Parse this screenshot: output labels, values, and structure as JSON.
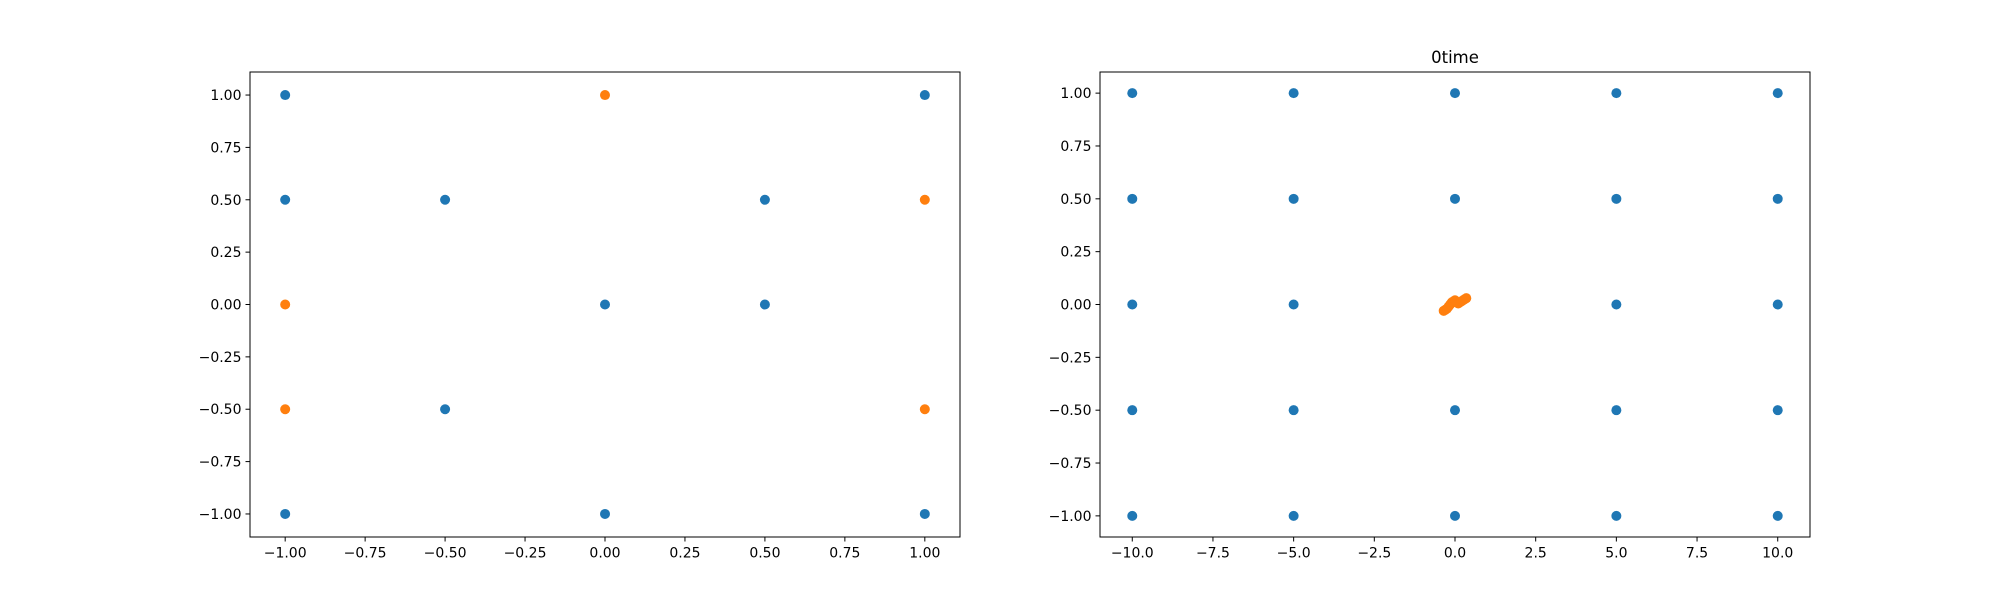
{
  "colors": {
    "background": "#ffffff",
    "axes_edge": "#000000",
    "series_blue": "#1f77b4",
    "series_orange": "#ff7f0e"
  },
  "chart_data": [
    {
      "type": "scatter",
      "title": "",
      "xlabel": "",
      "ylabel": "",
      "xlim": [
        -1.11,
        1.11
      ],
      "ylim": [
        -1.11,
        1.11
      ],
      "xticks": [
        -1.0,
        -0.75,
        -0.5,
        -0.25,
        0.0,
        0.25,
        0.5,
        0.75,
        1.0
      ],
      "xtick_labels": [
        "−1.00",
        "−0.75",
        "−0.50",
        "−0.25",
        "0.00",
        "0.25",
        "0.50",
        "0.75",
        "1.00"
      ],
      "yticks": [
        -1.0,
        -0.75,
        -0.5,
        -0.25,
        0.0,
        0.25,
        0.5,
        0.75,
        1.0
      ],
      "ytick_labels": [
        "−1.00",
        "−0.75",
        "−0.50",
        "−0.25",
        "0.00",
        "0.25",
        "0.50",
        "0.75",
        "1.00"
      ],
      "grid": false,
      "series": [
        {
          "color": "#1f77b4",
          "points": [
            [
              -1.0,
              1.0
            ],
            [
              1.0,
              1.0
            ],
            [
              -1.0,
              0.5
            ],
            [
              -0.5,
              0.5
            ],
            [
              0.5,
              0.5
            ],
            [
              0.0,
              0.0
            ],
            [
              0.5,
              0.0
            ],
            [
              -0.5,
              -0.5
            ],
            [
              -1.0,
              -1.0
            ],
            [
              0.0,
              -1.0
            ],
            [
              1.0,
              -1.0
            ]
          ]
        },
        {
          "color": "#ff7f0e",
          "points": [
            [
              0.0,
              1.0
            ],
            [
              1.0,
              0.5
            ],
            [
              -1.0,
              0.0
            ],
            [
              -1.0,
              -0.5
            ],
            [
              1.0,
              -0.5
            ]
          ]
        }
      ]
    },
    {
      "type": "scatter",
      "title": "0time",
      "xlabel": "",
      "ylabel": "",
      "xlim": [
        -11.0,
        11.0
      ],
      "ylim": [
        -1.1,
        1.1
      ],
      "xticks": [
        -10.0,
        -7.5,
        -5.0,
        -2.5,
        0.0,
        2.5,
        5.0,
        7.5,
        10.0
      ],
      "xtick_labels": [
        "−10.0",
        "−7.5",
        "−5.0",
        "−2.5",
        "0.0",
        "2.5",
        "5.0",
        "7.5",
        "10.0"
      ],
      "yticks": [
        -1.0,
        -0.75,
        -0.5,
        -0.25,
        0.0,
        0.25,
        0.5,
        0.75,
        1.0
      ],
      "ytick_labels": [
        "−1.00",
        "−0.75",
        "−0.50",
        "−0.25",
        "0.00",
        "0.25",
        "0.50",
        "0.75",
        "1.00"
      ],
      "grid": false,
      "series": [
        {
          "color": "#1f77b4",
          "points": [
            [
              -10,
              1.0
            ],
            [
              -5,
              1.0
            ],
            [
              0,
              1.0
            ],
            [
              5,
              1.0
            ],
            [
              10,
              1.0
            ],
            [
              -10,
              0.5
            ],
            [
              -5,
              0.5
            ],
            [
              0,
              0.5
            ],
            [
              5,
              0.5
            ],
            [
              10,
              0.5
            ],
            [
              -10,
              0.0
            ],
            [
              -5,
              0.0
            ],
            [
              5,
              0.0
            ],
            [
              10,
              0.0
            ],
            [
              -10,
              -0.5
            ],
            [
              -5,
              -0.5
            ],
            [
              0,
              -0.5
            ],
            [
              5,
              -0.5
            ],
            [
              10,
              -0.5
            ],
            [
              -10,
              -1.0
            ],
            [
              -5,
              -1.0
            ],
            [
              0,
              -1.0
            ],
            [
              5,
              -1.0
            ],
            [
              10,
              -1.0
            ]
          ]
        },
        {
          "color": "#ff7f0e",
          "points": [
            [
              -0.35,
              -0.03
            ],
            [
              -0.3,
              -0.025
            ],
            [
              -0.25,
              -0.02
            ],
            [
              -0.2,
              -0.01
            ],
            [
              -0.15,
              0.0
            ],
            [
              -0.1,
              0.01
            ],
            [
              -0.05,
              0.015
            ],
            [
              0.0,
              0.02
            ],
            [
              0.05,
              0.01
            ],
            [
              0.1,
              0.005
            ],
            [
              0.15,
              0.01
            ],
            [
              0.2,
              0.015
            ],
            [
              0.25,
              0.02
            ],
            [
              0.3,
              0.025
            ],
            [
              0.35,
              0.03
            ]
          ]
        }
      ]
    }
  ]
}
